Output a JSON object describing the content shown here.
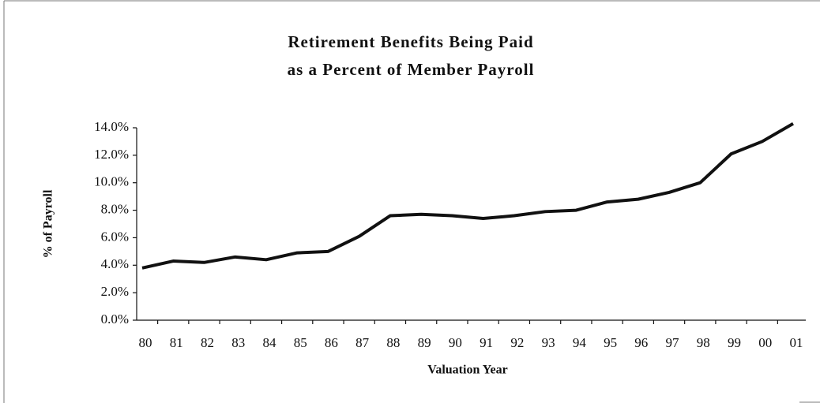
{
  "chart_data": {
    "type": "line",
    "title": [
      "Retirement Benefits Being Paid",
      "as a Percent of Member Payroll"
    ],
    "x_label": "Valuation Year",
    "y_label": "% of Payroll",
    "categories": [
      "80",
      "81",
      "82",
      "83",
      "84",
      "85",
      "86",
      "87",
      "88",
      "89",
      "90",
      "91",
      "92",
      "93",
      "94",
      "95",
      "96",
      "97",
      "98",
      "99",
      "00",
      "01"
    ],
    "values": [
      3.8,
      4.3,
      4.2,
      4.6,
      4.4,
      4.9,
      5.0,
      6.1,
      7.6,
      7.7,
      7.6,
      7.4,
      7.6,
      7.9,
      8.0,
      8.6,
      8.8,
      9.3,
      10.0,
      12.1,
      13.0,
      14.3
    ],
    "color": "#111111",
    "ylim": [
      0,
      14
    ],
    "yticks": [
      {
        "value": 0,
        "label": "0.0%"
      },
      {
        "value": 2,
        "label": "2.0%"
      },
      {
        "value": 4,
        "label": "4.0%"
      },
      {
        "value": 6,
        "label": "6.0%"
      },
      {
        "value": 8,
        "label": "8.0%"
      },
      {
        "value": 10,
        "label": "10.0%"
      },
      {
        "value": 12,
        "label": "12.0%"
      },
      {
        "value": 14,
        "label": "14.0%"
      }
    ]
  }
}
